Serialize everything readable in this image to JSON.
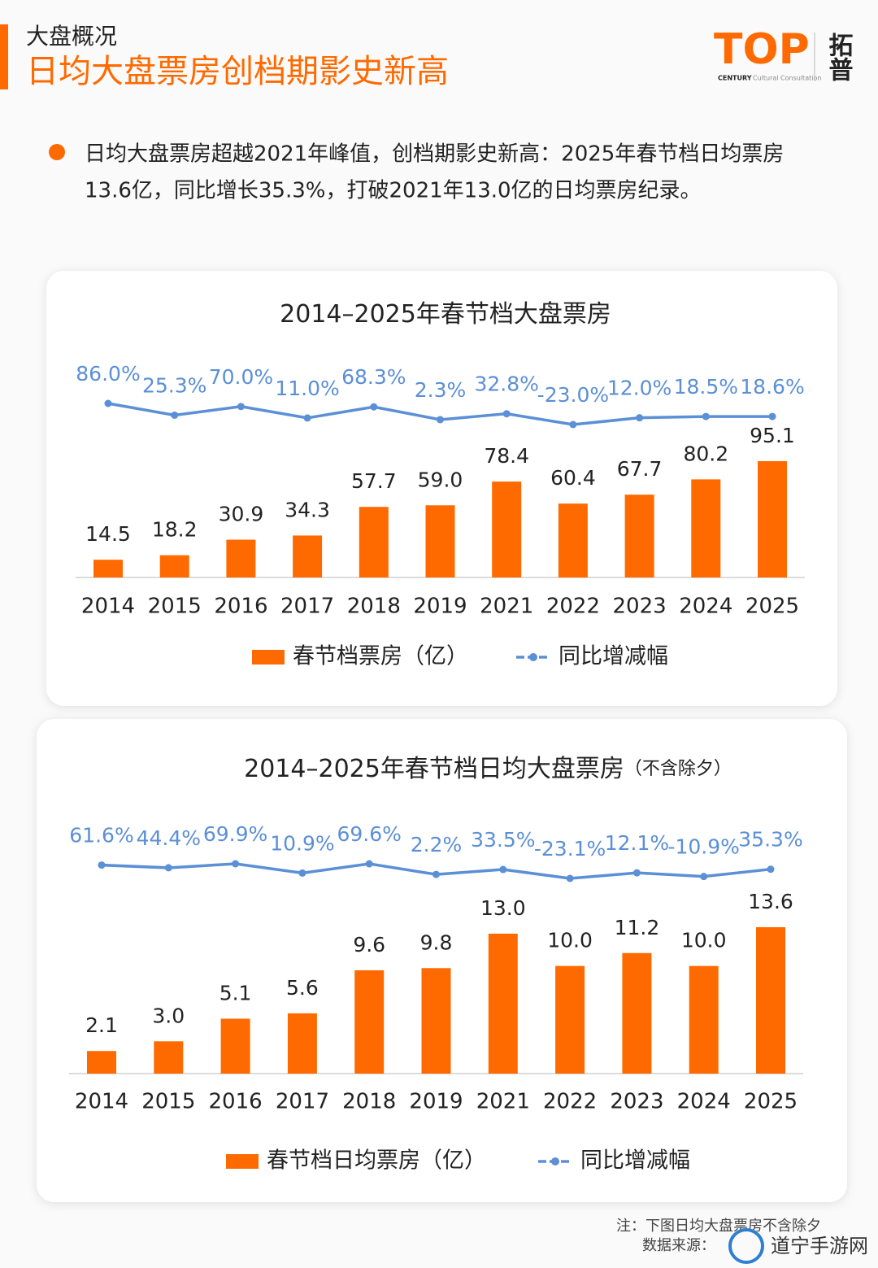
{
  "header": {
    "section": "大盘概况",
    "title": "日均大盘票房创档期影史新高",
    "logo": {
      "mark": "TOP",
      "brand": "拓普",
      "century": "CENTURY",
      "sub": "Cultural Consultation"
    }
  },
  "bullet": {
    "line1": "日均大盘票房超越2021年峰值，创档期影史新高：2025年春节档日均票房",
    "line2": "13.6亿，同比增长35.3%，打破2021年13.0亿的日均票房纪录。"
  },
  "chart_data": [
    {
      "type": "bar",
      "title": "2014–2025年春节档大盘票房",
      "categories": [
        "2014",
        "2015",
        "2016",
        "2017",
        "2018",
        "2019",
        "2021",
        "2022",
        "2023",
        "2024",
        "2025"
      ],
      "ylim": [
        0,
        100
      ],
      "series": [
        {
          "name": "春节档票房（亿）",
          "type": "bar",
          "color": "#ff6a00",
          "values": [
            14.5,
            18.2,
            30.9,
            34.3,
            57.7,
            59.0,
            78.4,
            60.4,
            67.7,
            80.2,
            95.1
          ],
          "value_labels": [
            "14.5",
            "18.2",
            "30.9",
            "34.3",
            "57.7",
            "59.0",
            "78.4",
            "60.4",
            "67.7",
            "80.2",
            "95.1"
          ]
        },
        {
          "name": "同比增减幅",
          "type": "line",
          "color": "#5b8fd6",
          "values": [
            86.0,
            25.3,
            70.0,
            11.0,
            68.3,
            2.3,
            32.8,
            -23.0,
            12.0,
            18.5,
            18.6
          ],
          "value_labels": [
            "86.0%",
            "25.3%",
            "70.0%",
            "11.0%",
            "68.3%",
            "2.3%",
            "32.8%",
            "-23.0%",
            "12.0%",
            "18.5%",
            "18.6%"
          ]
        }
      ]
    },
    {
      "type": "bar",
      "title": "2014–2025年春节档日均大盘票房",
      "subtitle": "（不含除夕）",
      "categories": [
        "2014",
        "2015",
        "2016",
        "2017",
        "2018",
        "2019",
        "2021",
        "2022",
        "2023",
        "2024",
        "2025"
      ],
      "ylim": [
        0,
        14
      ],
      "series": [
        {
          "name": "春节档日均票房（亿）",
          "type": "bar",
          "color": "#ff6a00",
          "values": [
            2.1,
            3.0,
            5.1,
            5.6,
            9.6,
            9.8,
            13.0,
            10.0,
            11.2,
            10.0,
            13.6
          ],
          "value_labels": [
            "2.1",
            "3.0",
            "5.1",
            "5.6",
            "9.6",
            "9.8",
            "13.0",
            "10.0",
            "11.2",
            "10.0",
            "13.6"
          ]
        },
        {
          "name": "同比增减幅",
          "type": "line",
          "color": "#5b8fd6",
          "values": [
            61.6,
            44.4,
            69.9,
            10.9,
            69.6,
            2.2,
            33.5,
            -23.1,
            12.1,
            -10.9,
            35.3
          ],
          "value_labels": [
            "61.6%",
            "44.4%",
            "69.9%",
            "10.9%",
            "69.6%",
            "2.2%",
            "33.5%",
            "-23.1%",
            "12.1%",
            "-10.9%",
            "35.3%"
          ]
        }
      ]
    }
  ],
  "footer": {
    "note": "注：下图日均大盘票房不含除夕",
    "source": "数据来源：",
    "watermark": "道宁手游网"
  }
}
